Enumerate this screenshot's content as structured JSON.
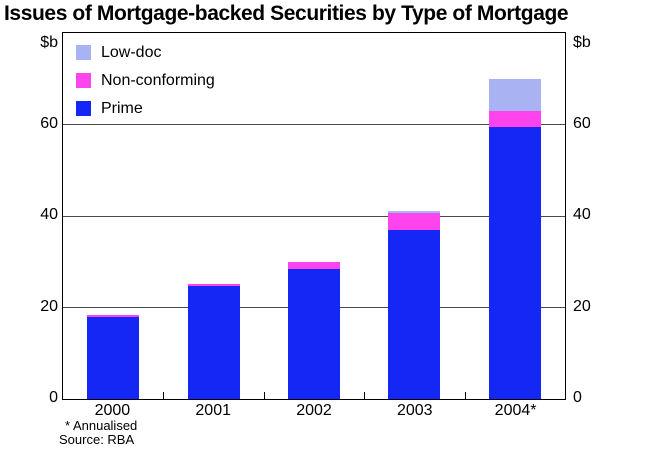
{
  "chart_data": {
    "type": "bar",
    "stacked": true,
    "title": "Issues of Mortgage-backed Securities by Type of Mortgage",
    "y_unit": "$b",
    "categories": [
      "2000",
      "2001",
      "2002",
      "2003",
      "2004*"
    ],
    "series": [
      {
        "name": "Prime",
        "color": "#1427f5",
        "values": [
          17.9,
          24.7,
          28.4,
          37.0,
          59.5
        ]
      },
      {
        "name": "Non-conforming",
        "color": "#ff44ee",
        "values": [
          0.5,
          0.4,
          1.5,
          3.7,
          3.5
        ]
      },
      {
        "name": "Low-doc",
        "color": "#a9b2f2",
        "values": [
          0.0,
          0.0,
          0.0,
          0.4,
          7.0
        ]
      }
    ],
    "totals": [
      18.4,
      25.1,
      29.9,
      41.1,
      70.0
    ],
    "legend_order": [
      "Low-doc",
      "Non-conforming",
      "Prime"
    ],
    "legend_position": "top-left",
    "ylim": [
      0,
      80
    ],
    "yticks": [
      0,
      20,
      40,
      60
    ],
    "grid": true,
    "gridline_color": "#4a4a4a",
    "axis_color": "#000000",
    "background_color": "#ffffff"
  },
  "footnotes": [
    "* Annualised",
    "Source: RBA"
  ]
}
